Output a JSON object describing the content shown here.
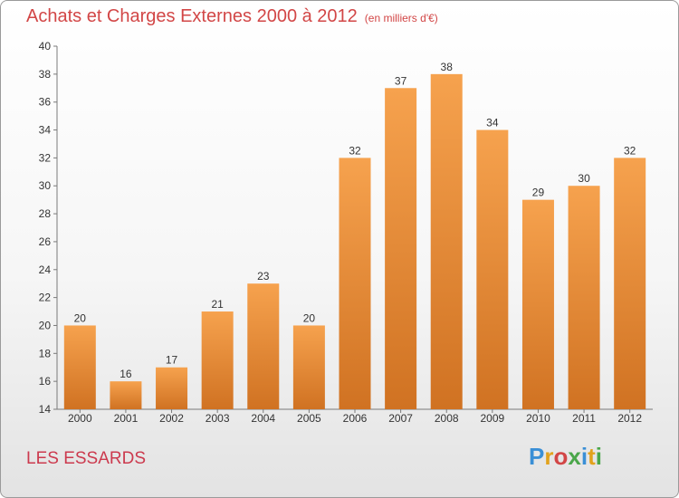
{
  "header": {
    "title": "Achats et Charges Externes 2000 à 2012",
    "subtitle": "(en milliers d'€)"
  },
  "footer": {
    "commune": "LES ESSARDS",
    "logo": "Proxiti"
  },
  "colors": {
    "bar_top": "#f6a24e",
    "bar_bottom": "#d07222",
    "title": "#d24646",
    "commune": "#cc3a4e"
  },
  "chart_data": {
    "type": "bar",
    "title": "Achats et Charges Externes 2000 à 2012",
    "subtitle": "(en milliers d'€)",
    "xlabel": "",
    "ylabel": "",
    "categories": [
      "2000",
      "2001",
      "2002",
      "2003",
      "2004",
      "2005",
      "2006",
      "2007",
      "2008",
      "2009",
      "2010",
      "2011",
      "2012"
    ],
    "values": [
      20,
      16,
      17,
      21,
      23,
      20,
      32,
      37,
      38,
      34,
      29,
      30,
      32
    ],
    "ylim": [
      14,
      40
    ],
    "yticks": [
      14,
      16,
      18,
      20,
      22,
      24,
      26,
      28,
      30,
      32,
      34,
      36,
      38,
      40
    ],
    "grid": false,
    "legend": "none"
  }
}
